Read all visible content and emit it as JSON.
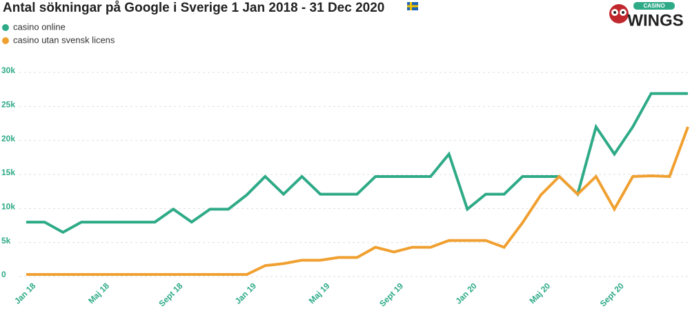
{
  "chart_data": {
    "type": "line",
    "title": "Antal sökningar på Google i Sverige 1 Jan 2018 - 31 Dec 2020",
    "logo": {
      "small": "CASINO",
      "big": "WINGS"
    },
    "categories": [
      "Jan 18",
      null,
      null,
      null,
      "Maj 18",
      null,
      null,
      null,
      "Sept 18",
      null,
      null,
      null,
      "Jan 19",
      null,
      null,
      null,
      "Maj 19",
      null,
      null,
      null,
      "Sept 19",
      null,
      null,
      null,
      "Jan 20",
      null,
      null,
      null,
      "Maj 20",
      null,
      null,
      null,
      "Sept 20",
      null,
      null,
      null,
      null
    ],
    "series": [
      {
        "name": "casino online",
        "color": "#2eaa87",
        "values": [
          8000,
          8000,
          6500,
          8000,
          8000,
          8000,
          8000,
          8000,
          9900,
          8000,
          9900,
          9900,
          12000,
          14700,
          12100,
          14700,
          12100,
          12100,
          12100,
          14700,
          14700,
          14700,
          14700,
          18000,
          9900,
          12100,
          12100,
          14700,
          14700,
          14700,
          12100,
          22000,
          18000,
          22000,
          26900,
          26900,
          26900
        ]
      },
      {
        "name": "casino utan svensk licens",
        "color": "#f0a030",
        "values": [
          300,
          300,
          300,
          300,
          300,
          300,
          300,
          300,
          300,
          300,
          300,
          300,
          300,
          1600,
          1900,
          2400,
          2400,
          2800,
          2800,
          4300,
          3600,
          4300,
          4300,
          5300,
          5300,
          5300,
          4300,
          7900,
          12000,
          14700,
          12100,
          14700,
          9900,
          14700,
          14800,
          14700,
          22000
        ]
      }
    ],
    "ylim": [
      0,
      30000
    ],
    "yticks": [
      0,
      {
        "value": 5000,
        "label": "5k"
      },
      {
        "value": 10000,
        "label": "10k"
      },
      {
        "value": 15000,
        "label": "15k"
      },
      {
        "value": 20000,
        "label": "20k"
      },
      {
        "value": 25000,
        "label": "25k"
      },
      {
        "value": 30000,
        "label": "30k"
      }
    ],
    "grid": true
  }
}
